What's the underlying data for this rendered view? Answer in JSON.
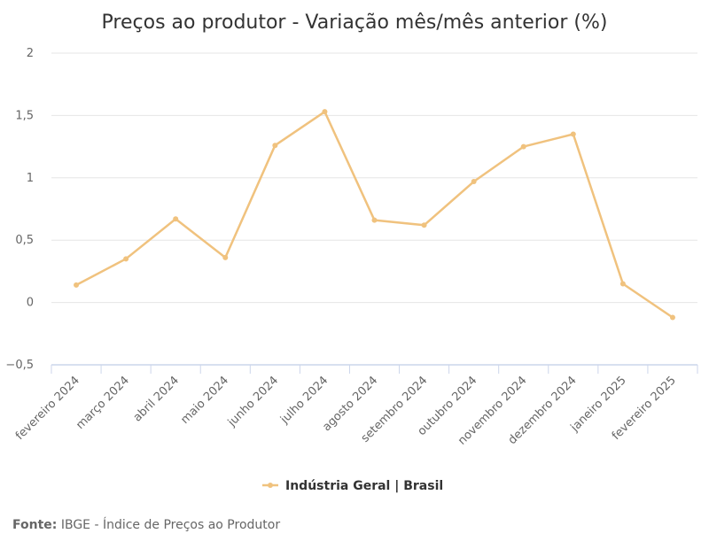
{
  "chart_data": {
    "type": "line",
    "title": "Preços ao produtor - Variação mês/mês anterior (%)",
    "categories": [
      "fevereiro 2024",
      "março 2024",
      "abril 2024",
      "maio 2024",
      "junho 2024",
      "julho 2024",
      "agosto 2024",
      "setembro 2024",
      "outubro 2024",
      "novembro 2024",
      "dezembro 2024",
      "janeiro 2025",
      "fevereiro 2025"
    ],
    "series": [
      {
        "name": "Indústria Geral | Brasil",
        "color": "#f0c27e",
        "values": [
          0.14,
          0.35,
          0.67,
          0.36,
          1.26,
          1.53,
          0.66,
          0.62,
          0.97,
          1.25,
          1.35,
          0.15,
          -0.12
        ]
      }
    ],
    "ylim": [
      -0.5,
      2
    ],
    "yticks": [
      -0.5,
      0,
      0.5,
      1,
      1.5,
      2
    ],
    "ytick_labels": [
      "−0,5",
      "0",
      "0,5",
      "1",
      "1,5",
      "2"
    ],
    "grid": true,
    "legend": "bottom-center",
    "xlabel": "",
    "ylabel": ""
  },
  "source": {
    "label": "Fonte:",
    "text": " IBGE - Índice de Preços ao Produtor"
  }
}
